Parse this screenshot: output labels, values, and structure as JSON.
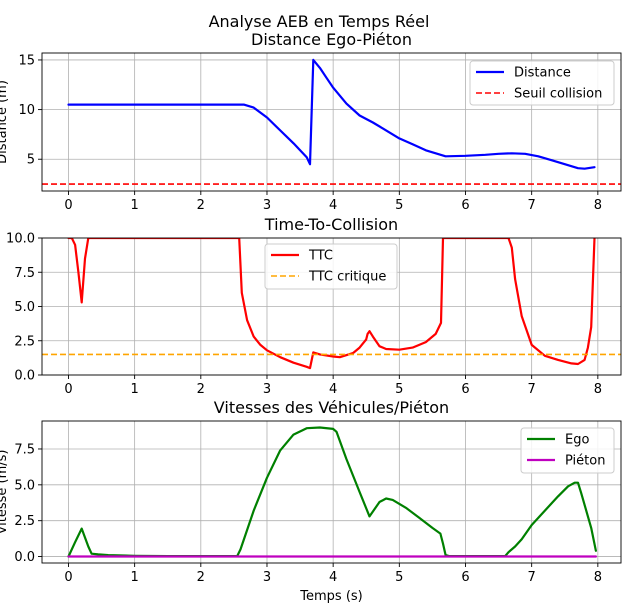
{
  "figure": {
    "suptitle": "Analyse AEB en Temps Réel"
  },
  "chart_data": [
    {
      "type": "line",
      "title": "Distance Ego-Piéton",
      "xlabel": "",
      "ylabel": "Distance (m)",
      "xlim": [
        -0.4,
        8.35
      ],
      "ylim": [
        1.8,
        15.7
      ],
      "xticks": [
        0,
        1,
        2,
        3,
        4,
        5,
        6,
        7,
        8
      ],
      "yticks": [
        5,
        10,
        15
      ],
      "grid": true,
      "legend": "top-right",
      "series": [
        {
          "name": "Distance",
          "color": "#0000ff",
          "style": "solid",
          "x": [
            0,
            0.5,
            1,
            1.5,
            2,
            2.5,
            2.65,
            2.8,
            3.0,
            3.2,
            3.4,
            3.6,
            3.65,
            3.7,
            3.8,
            3.9,
            4.0,
            4.2,
            4.4,
            4.6,
            4.8,
            5.0,
            5.2,
            5.4,
            5.6,
            5.7,
            6.0,
            6.3,
            6.5,
            6.7,
            6.9,
            7.1,
            7.3,
            7.5,
            7.7,
            7.8,
            7.9,
            7.95
          ],
          "y": [
            10.5,
            10.5,
            10.5,
            10.5,
            10.5,
            10.5,
            10.5,
            10.2,
            9.2,
            7.9,
            6.6,
            5.2,
            4.5,
            15.0,
            14.2,
            13.2,
            12.2,
            10.6,
            9.4,
            8.7,
            7.9,
            7.1,
            6.5,
            5.9,
            5.5,
            5.3,
            5.35,
            5.45,
            5.55,
            5.6,
            5.55,
            5.3,
            4.9,
            4.5,
            4.1,
            4.05,
            4.15,
            4.2
          ]
        },
        {
          "name": "Seuil collision",
          "color": "#ff0000",
          "style": "dashed",
          "x": [
            -0.4,
            8.35
          ],
          "y": [
            2.5,
            2.5
          ]
        }
      ]
    },
    {
      "type": "line",
      "title": "Time-To-Collision",
      "xlabel": "",
      "ylabel": "",
      "xlim": [
        -0.4,
        8.35
      ],
      "ylim": [
        0,
        10
      ],
      "xticks": [
        0,
        1,
        2,
        3,
        4,
        5,
        6,
        7,
        8
      ],
      "yticks": [
        "0.0",
        "2.5",
        "5.0",
        "7.5",
        "10.0"
      ],
      "grid": true,
      "legend": "top-center",
      "series": [
        {
          "name": "TTC",
          "color": "#ff0000",
          "style": "solid",
          "x": [
            0,
            0.05,
            0.1,
            0.15,
            0.2,
            0.25,
            0.3,
            0.35,
            0.5,
            1,
            1.5,
            2,
            2.5,
            2.58,
            2.62,
            2.7,
            2.8,
            2.9,
            3.0,
            3.2,
            3.4,
            3.6,
            3.65,
            3.7,
            3.8,
            4.0,
            4.1,
            4.3,
            4.4,
            4.5,
            4.52,
            4.55,
            4.6,
            4.7,
            4.8,
            5.0,
            5.2,
            5.4,
            5.55,
            5.63,
            5.66,
            5.7,
            6.0,
            6.5,
            6.65,
            6.7,
            6.75,
            6.85,
            7.0,
            7.2,
            7.4,
            7.6,
            7.7,
            7.8,
            7.85,
            7.9,
            7.95
          ],
          "y": [
            10,
            10,
            9.5,
            7.5,
            5.3,
            8.5,
            10,
            10,
            10,
            10,
            10,
            10,
            10,
            10,
            6.0,
            4.0,
            2.8,
            2.2,
            1.8,
            1.3,
            0.9,
            0.6,
            0.5,
            1.65,
            1.5,
            1.35,
            1.3,
            1.6,
            2.0,
            2.6,
            3.0,
            3.2,
            2.8,
            2.1,
            1.9,
            1.85,
            2.0,
            2.4,
            3.0,
            3.8,
            10,
            10,
            10,
            10,
            10,
            9.3,
            7.0,
            4.3,
            2.2,
            1.4,
            1.1,
            0.85,
            0.8,
            1.1,
            2.0,
            3.5,
            10
          ]
        },
        {
          "name": "TTC critique",
          "color": "#ffa500",
          "style": "dashed",
          "x": [
            -0.4,
            8.35
          ],
          "y": [
            1.5,
            1.5
          ]
        }
      ]
    },
    {
      "type": "line",
      "title": "Vitesses des Véhicules/Piéton",
      "xlabel": "Temps (s)",
      "ylabel": "Vitesse (m/s)",
      "xlim": [
        -0.4,
        8.35
      ],
      "ylim": [
        -0.45,
        9.45
      ],
      "xticks": [
        0,
        1,
        2,
        3,
        4,
        5,
        6,
        7,
        8
      ],
      "yticks": [
        "0.0",
        "2.5",
        "5.0",
        "7.5"
      ],
      "grid": true,
      "legend": "top-right",
      "series": [
        {
          "name": "Ego",
          "color": "#008000",
          "style": "solid",
          "x": [
            0,
            0.1,
            0.2,
            0.3,
            0.35,
            0.45,
            0.6,
            1,
            1.5,
            2,
            2.5,
            2.55,
            2.6,
            2.8,
            3.0,
            3.2,
            3.4,
            3.6,
            3.8,
            4.0,
            4.05,
            4.2,
            4.4,
            4.55,
            4.7,
            4.8,
            4.9,
            5.1,
            5.3,
            5.5,
            5.62,
            5.66,
            5.7,
            5.75,
            6.0,
            6.3,
            6.6,
            6.65,
            6.75,
            6.85,
            7.0,
            7.2,
            7.4,
            7.55,
            7.65,
            7.7,
            7.75,
            7.9,
            7.97
          ],
          "y": [
            0.0,
            1.0,
            1.95,
            0.7,
            0.2,
            0.15,
            0.1,
            0.05,
            0.03,
            0.03,
            0.03,
            0.03,
            0.5,
            3.2,
            5.5,
            7.4,
            8.5,
            8.95,
            9.0,
            8.9,
            8.7,
            6.8,
            4.5,
            2.8,
            3.8,
            4.05,
            3.95,
            3.4,
            2.7,
            2.0,
            1.6,
            0.9,
            0.1,
            0.03,
            0.03,
            0.03,
            0.03,
            0.3,
            0.7,
            1.2,
            2.2,
            3.2,
            4.2,
            4.9,
            5.15,
            5.15,
            4.4,
            2.0,
            0.4
          ]
        },
        {
          "name": "Piéton",
          "color": "#bf00bf",
          "style": "solid",
          "x": [
            0,
            7.97
          ],
          "y": [
            0,
            0
          ]
        }
      ]
    }
  ]
}
